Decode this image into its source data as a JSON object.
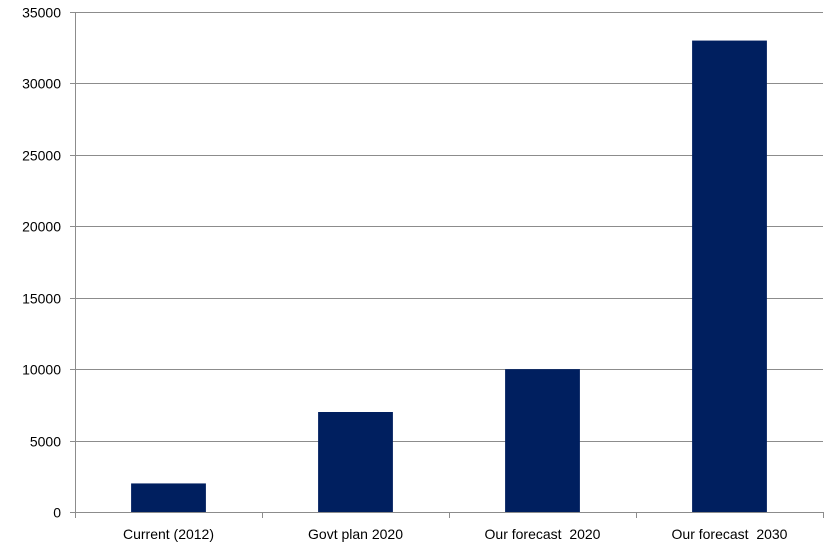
{
  "chart_data": {
    "type": "bar",
    "categories": [
      "Current (2012)",
      "Govt plan 2020",
      "Our forecast  2020",
      "Our forecast  2030"
    ],
    "values": [
      2000,
      7000,
      10000,
      33000
    ],
    "title": "",
    "xlabel": "",
    "ylabel": "",
    "ylim": [
      0,
      35000
    ],
    "yticks": [
      0,
      5000,
      10000,
      15000,
      20000,
      25000,
      30000,
      35000
    ],
    "grid": true,
    "legend": "none",
    "colors": {
      "bar": "#001f5f",
      "grid": "#8c8c8c",
      "text": "#000000"
    }
  }
}
